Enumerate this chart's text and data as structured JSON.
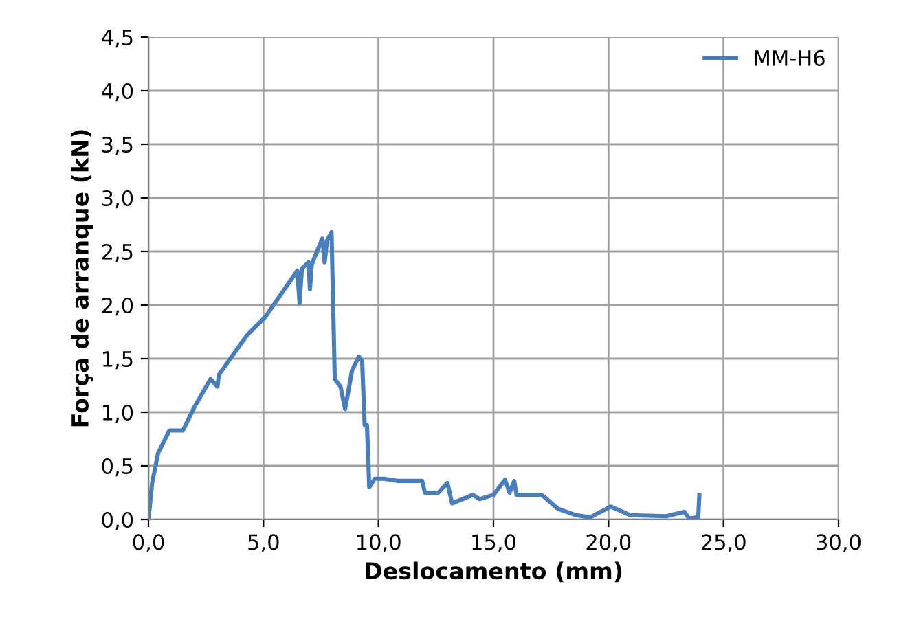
{
  "chart_data": {
    "type": "line",
    "xlabel": "Deslocamento (mm)",
    "ylabel": "Força de arranque (kN)",
    "xlim": [
      0,
      30
    ],
    "ylim": [
      0,
      4.5
    ],
    "xticks": [
      {
        "value": 0,
        "label": "0,0"
      },
      {
        "value": 5,
        "label": "5,0"
      },
      {
        "value": 10,
        "label": "10,0"
      },
      {
        "value": 15,
        "label": "15,0"
      },
      {
        "value": 20,
        "label": "20,0"
      },
      {
        "value": 25,
        "label": "25,0"
      },
      {
        "value": 30,
        "label": "30,0"
      }
    ],
    "yticks": [
      {
        "value": 0,
        "label": "0,0"
      },
      {
        "value": 0.5,
        "label": "0,5"
      },
      {
        "value": 1,
        "label": "1,0"
      },
      {
        "value": 1.5,
        "label": "1,5"
      },
      {
        "value": 2,
        "label": "2,0"
      },
      {
        "value": 2.5,
        "label": "2,5"
      },
      {
        "value": 3,
        "label": "3,0"
      },
      {
        "value": 3.5,
        "label": "3,5"
      },
      {
        "value": 4,
        "label": "4,0"
      },
      {
        "value": 4.5,
        "label": "4,5"
      }
    ],
    "grid": true,
    "legend": "top right",
    "marker": "none",
    "line_style": "solid",
    "series": [
      {
        "name": "MM-H6",
        "color": "#4a7ebb",
        "x": [
          0,
          0.16,
          0.42,
          0.91,
          1.5,
          2.0,
          2.7,
          3.0,
          3.06,
          4.29,
          5.08,
          6.47,
          6.57,
          6.67,
          6.96,
          7.02,
          7.1,
          7.56,
          7.66,
          7.76,
          7.96,
          8.1,
          8.35,
          8.55,
          8.85,
          9.15,
          9.29,
          9.4,
          9.5,
          9.6,
          9.84,
          10.24,
          10.83,
          11.9,
          12.02,
          12.6,
          13.0,
          13.2,
          14.1,
          14.4,
          15.0,
          15.5,
          15.7,
          15.9,
          16.0,
          16.5,
          17.1,
          17.8,
          18.6,
          19.2,
          20.1,
          20.95,
          22.5,
          23.3,
          23.5,
          23.9,
          23.95
        ],
        "values": [
          0,
          0.34,
          0.62,
          0.83,
          0.83,
          1.05,
          1.31,
          1.24,
          1.35,
          1.72,
          1.89,
          2.32,
          2.02,
          2.34,
          2.4,
          2.15,
          2.38,
          2.62,
          2.4,
          2.6,
          2.68,
          1.31,
          1.24,
          1.03,
          1.39,
          1.52,
          1.48,
          0.88,
          0.88,
          0.3,
          0.38,
          0.38,
          0.36,
          0.36,
          0.25,
          0.25,
          0.34,
          0.15,
          0.23,
          0.19,
          0.23,
          0.37,
          0.25,
          0.36,
          0.23,
          0.23,
          0.23,
          0.1,
          0.04,
          0.02,
          0.12,
          0.04,
          0.03,
          0.07,
          0.01,
          0.02,
          0.23
        ]
      }
    ]
  }
}
